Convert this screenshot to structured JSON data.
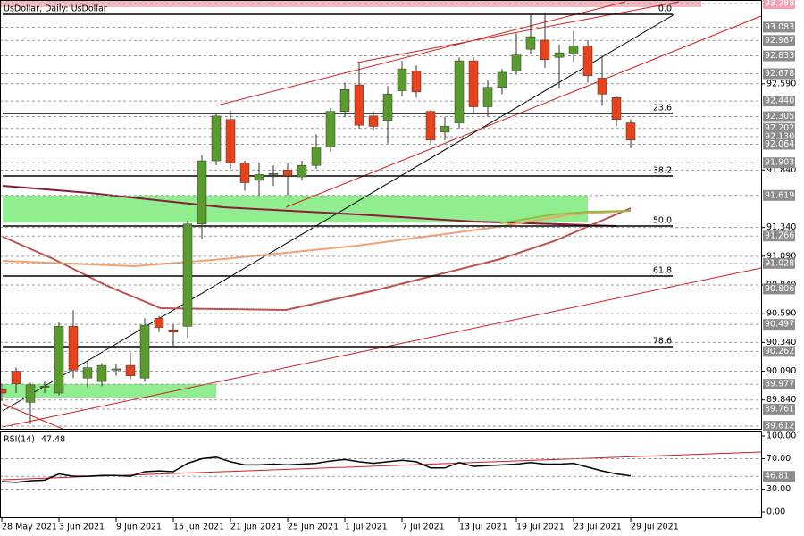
{
  "chart_data": {
    "type": "candlestick",
    "title": "UsDollar, Daily: UsDollar",
    "categories": [
      "28 May 2021",
      null,
      null,
      null,
      "3 Jun 2021",
      null,
      null,
      null,
      "9 Jun 2021",
      null,
      null,
      null,
      "15 Jun 2021",
      null,
      null,
      null,
      "21 Jun 2021",
      null,
      null,
      null,
      "25 Jun 2021",
      null,
      null,
      null,
      "1 Jul 2021",
      null,
      null,
      null,
      "7 Jul 2021",
      null,
      null,
      null,
      "13 Jul 2021",
      null,
      null,
      null,
      "19 Jul 2021",
      null,
      null,
      null,
      "23 Jul 2021",
      null,
      null,
      null,
      "29 Jul 2021"
    ],
    "open": [
      89.93,
      90.09,
      89.82,
      89.95,
      89.9,
      90.48,
      90.03,
      90.0,
      90.1,
      90.14,
      90.03,
      90.55,
      90.45,
      90.48,
      91.37,
      91.92,
      92.28,
      91.9,
      91.75,
      91.8,
      91.84,
      91.78,
      91.88,
      92.04,
      92.35,
      92.58,
      92.31,
      92.27,
      92.53,
      92.7,
      92.35,
      92.17,
      92.25,
      92.79,
      92.39,
      92.56,
      92.7,
      92.89,
      92.97,
      92.82,
      92.85,
      92.92,
      92.64,
      92.47,
      92.25
    ],
    "high": [
      89.98,
      90.12,
      89.99,
      90.0,
      90.52,
      90.62,
      90.18,
      90.16,
      90.15,
      90.25,
      90.55,
      90.57,
      90.5,
      91.4,
      91.97,
      92.34,
      92.36,
      91.92,
      91.9,
      91.88,
      91.9,
      91.92,
      92.15,
      92.38,
      92.6,
      92.77,
      92.35,
      92.57,
      92.79,
      92.75,
      92.36,
      92.3,
      92.82,
      92.82,
      92.62,
      92.72,
      93.03,
      93.2,
      93.21,
      92.93,
      93.05,
      92.97,
      92.83,
      92.48,
      92.28
    ],
    "low": [
      89.83,
      89.9,
      89.63,
      89.9,
      89.88,
      90.03,
      89.95,
      89.96,
      90.05,
      90.02,
      90.0,
      90.43,
      90.3,
      90.38,
      91.24,
      91.88,
      91.85,
      91.66,
      91.62,
      91.7,
      91.62,
      91.75,
      91.85,
      92.0,
      92.3,
      92.2,
      92.18,
      92.07,
      92.48,
      92.47,
      92.07,
      92.1,
      92.2,
      92.33,
      92.3,
      92.5,
      92.67,
      92.85,
      92.73,
      92.55,
      92.78,
      92.6,
      92.4,
      92.22,
      92.03
    ],
    "close": [
      89.9,
      89.98,
      89.97,
      89.96,
      90.48,
      90.1,
      90.12,
      90.14,
      90.11,
      90.05,
      90.49,
      90.47,
      90.43,
      91.37,
      91.92,
      92.31,
      91.9,
      91.73,
      91.8,
      91.81,
      91.79,
      91.88,
      92.04,
      92.35,
      92.54,
      92.23,
      92.22,
      92.5,
      92.72,
      92.52,
      92.1,
      92.22,
      92.79,
      92.39,
      92.56,
      92.69,
      92.84,
      93.0,
      92.8,
      92.86,
      92.92,
      92.66,
      92.5,
      92.28,
      92.1
    ],
    "up_color": "#5b9a2c",
    "down_color": "#e8421c",
    "ylim": [
      89.589,
      93.319
    ],
    "yticks": [
      {
        "value": 92.59,
        "label": "92.590"
      },
      {
        "value": 91.84,
        "label": "91.840"
      },
      {
        "value": 91.34,
        "label": "91.340"
      },
      {
        "value": 91.09,
        "label": "91.090"
      },
      {
        "value": 90.84,
        "label": "90.840"
      },
      {
        "value": 90.59,
        "label": "90.590"
      },
      {
        "value": 90.34,
        "label": "90.340"
      },
      {
        "value": 90.09,
        "label": "90.090"
      },
      {
        "value": 89.84,
        "label": "89.840"
      }
    ],
    "levels": [
      93.288,
      93.083,
      92.967,
      92.833,
      92.678,
      {
        "value": 92.44,
        "label": "92.440"
      },
      92.305,
      92.202,
      {
        "value": 92.13,
        "label": "92.130"
      },
      92.064,
      91.903,
      91.619,
      91.266,
      91.028,
      90.806,
      90.497,
      90.262,
      89.977,
      89.761,
      89.612
    ],
    "fib_levels": [
      {
        "label": "0.0",
        "price": 93.195
      },
      {
        "label": "23.6",
        "price": 92.332
      },
      {
        "label": "38.2",
        "price": 91.788
      },
      {
        "label": "50.0",
        "price": 91.353
      },
      {
        "label": "61.8",
        "price": 90.918
      },
      {
        "label": "78.6",
        "price": 90.304
      }
    ],
    "rsi": {
      "title": "RSI(14)",
      "values": [
        40,
        39,
        41,
        42,
        50,
        47,
        47,
        48,
        48,
        47,
        53,
        54,
        53,
        64,
        70,
        72,
        66,
        62,
        62,
        63,
        62,
        63,
        64,
        67,
        69,
        66,
        64,
        66,
        68,
        66,
        58,
        58,
        65,
        60,
        61,
        62,
        63,
        65,
        63,
        63,
        64,
        59,
        54,
        50,
        47.48
      ],
      "ylim": [
        -8.2,
        105.9
      ],
      "level": 46.81,
      "yticks": [
        {
          "value": 100,
          "label": "100.00"
        },
        {
          "value": 70,
          "label": "70.00"
        },
        {
          "value": 30,
          "label": "30.00"
        },
        {
          "value": 0,
          "label": "0.00"
        }
      ]
    }
  }
}
